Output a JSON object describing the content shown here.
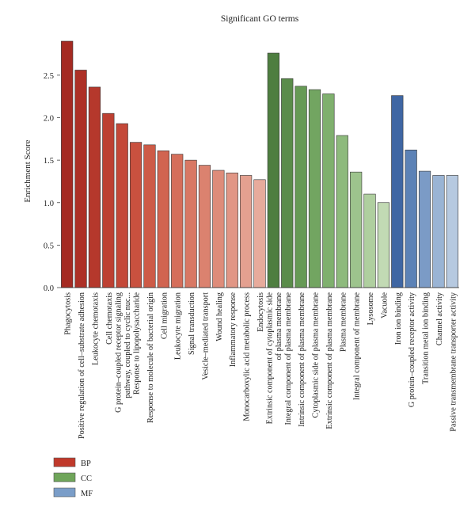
{
  "chart_data": {
    "type": "bar",
    "title": "Significant GO terms",
    "xlabel": "",
    "ylabel": "Enrichment Score",
    "ylim": [
      0,
      2.9
    ],
    "yticks": [
      "0.0",
      "0.5",
      "1.0",
      "1.5",
      "2.0",
      "2.5"
    ],
    "grid": false,
    "legend_position": "bottom-left",
    "legend": [
      {
        "label": "BP",
        "color": "#c0392b"
      },
      {
        "label": "CC",
        "color": "#6fa55a"
      },
      {
        "label": "MF",
        "color": "#7a9dc8"
      }
    ],
    "categories": [
      {
        "lines": [
          "Phagocytosis"
        ],
        "group": "BP",
        "value": 2.9,
        "color": "#a52a22"
      },
      {
        "lines": [
          "Positive regulation of cell–substrate adhesion"
        ],
        "group": "BP",
        "value": 2.56,
        "color": "#ad3026"
      },
      {
        "lines": [
          "Leukocyte chemotaxis"
        ],
        "group": "BP",
        "value": 2.36,
        "color": "#b5382c"
      },
      {
        "lines": [
          "Cell chemotaxis"
        ],
        "group": "BP",
        "value": 2.05,
        "color": "#bd4032"
      },
      {
        "lines": [
          "G protein–coupled receptor signaling",
          "pathway, coupled to cyclic nuc..."
        ],
        "group": "BP",
        "value": 1.93,
        "color": "#c44838"
      },
      {
        "lines": [
          "Response to lipopolysaccharide"
        ],
        "group": "BP",
        "value": 1.71,
        "color": "#c9513f"
      },
      {
        "lines": [
          "Response to molecule of bacterial origin"
        ],
        "group": "BP",
        "value": 1.68,
        "color": "#cd5b47"
      },
      {
        "lines": [
          "Cell migration"
        ],
        "group": "BP",
        "value": 1.61,
        "color": "#d16450"
      },
      {
        "lines": [
          "Leukocyte migration"
        ],
        "group": "BP",
        "value": 1.57,
        "color": "#d56e5a"
      },
      {
        "lines": [
          "Signal transduction"
        ],
        "group": "BP",
        "value": 1.5,
        "color": "#d87864"
      },
      {
        "lines": [
          "Vesicle–mediated transport"
        ],
        "group": "BP",
        "value": 1.44,
        "color": "#db826f"
      },
      {
        "lines": [
          "Wound healing"
        ],
        "group": "BP",
        "value": 1.38,
        "color": "#de8c7a"
      },
      {
        "lines": [
          "Inflammatory response"
        ],
        "group": "BP",
        "value": 1.35,
        "color": "#e19685"
      },
      {
        "lines": [
          "Monocarboxylic acid metabolic process"
        ],
        "group": "BP",
        "value": 1.32,
        "color": "#e4a090"
      },
      {
        "lines": [
          "Endocytosis"
        ],
        "group": "BP",
        "value": 1.27,
        "color": "#e7ab9c"
      },
      {
        "lines": [
          "Extrinsic component of cytoplasmic side",
          "of plasma membrane"
        ],
        "group": "CC",
        "value": 2.76,
        "color": "#4e7e40"
      },
      {
        "lines": [
          "Integral component of plasma membrane"
        ],
        "group": "CC",
        "value": 2.46,
        "color": "#5a8c4a"
      },
      {
        "lines": [
          "Intrinsic component of plasma membrane"
        ],
        "group": "CC",
        "value": 2.37,
        "color": "#669a55"
      },
      {
        "lines": [
          "Cytoplasmic side of plasma membrane"
        ],
        "group": "CC",
        "value": 2.33,
        "color": "#72a561"
      },
      {
        "lines": [
          "Extrinsic component of plasma membrane"
        ],
        "group": "CC",
        "value": 2.28,
        "color": "#7fb06e"
      },
      {
        "lines": [
          "Plasma membrane"
        ],
        "group": "CC",
        "value": 1.79,
        "color": "#8dba7c"
      },
      {
        "lines": [
          "Integral component of membrane"
        ],
        "group": "CC",
        "value": 1.36,
        "color": "#9dc48d"
      },
      {
        "lines": [
          "Lysosome"
        ],
        "group": "CC",
        "value": 1.1,
        "color": "#afcf9f"
      },
      {
        "lines": [
          "Vacuole"
        ],
        "group": "CC",
        "value": 1.0,
        "color": "#c2dab4"
      },
      {
        "lines": [
          "Iron ion binding"
        ],
        "group": "MF",
        "value": 2.26,
        "color": "#3f66a3"
      },
      {
        "lines": [
          "G protein–coupled receptor activity"
        ],
        "group": "MF",
        "value": 1.62,
        "color": "#5c82b6"
      },
      {
        "lines": [
          "Transition metal ion binding"
        ],
        "group": "MF",
        "value": 1.37,
        "color": "#7b9bc6"
      },
      {
        "lines": [
          "Channel activity"
        ],
        "group": "MF",
        "value": 1.32,
        "color": "#9ab4d4"
      },
      {
        "lines": [
          "Passive transmembrane transporter activity"
        ],
        "group": "MF",
        "value": 1.32,
        "color": "#b6c9e0"
      }
    ]
  }
}
